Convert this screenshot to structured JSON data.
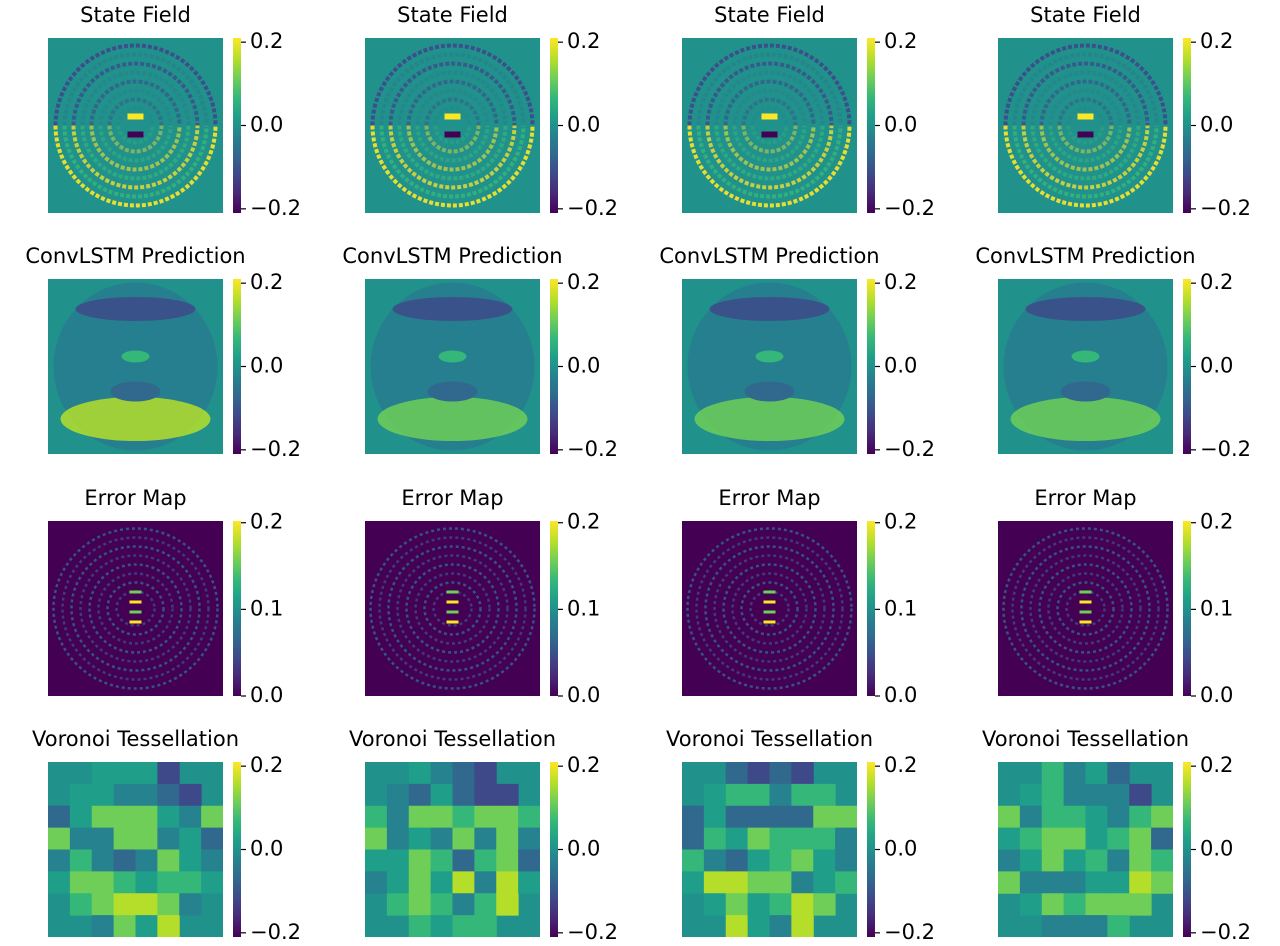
{
  "chart_data": [
    {
      "type": "heatmap",
      "title": "State Field",
      "colormap": "viridis",
      "ylim": [
        -0.21,
        0.21
      ],
      "yticks": [
        {
          "value": -0.2,
          "label": "−0.2"
        },
        {
          "value": 0,
          "label": "0.0"
        },
        0.2
      ]
    },
    {
      "type": "heatmap",
      "title": "State Field",
      "colormap": "viridis",
      "ylim": [
        -0.21,
        0.21
      ],
      "yticks": [
        {
          "value": -0.2,
          "label": "−0.2"
        },
        {
          "value": 0,
          "label": "0.0"
        },
        0.2
      ]
    },
    {
      "type": "heatmap",
      "title": "State Field",
      "colormap": "viridis",
      "ylim": [
        -0.21,
        0.21
      ],
      "yticks": [
        {
          "value": -0.2,
          "label": "−0.2"
        },
        {
          "value": 0,
          "label": "0.0"
        },
        0.2
      ]
    },
    {
      "type": "heatmap",
      "title": "State Field",
      "colormap": "viridis",
      "ylim": [
        -0.21,
        0.21
      ],
      "yticks": [
        {
          "value": -0.2,
          "label": "−0.2"
        },
        {
          "value": 0,
          "label": "0.0"
        },
        0.2
      ]
    },
    {
      "type": "heatmap",
      "title": "ConvLSTM Prediction",
      "colormap": "viridis",
      "ylim": [
        -0.21,
        0.21
      ],
      "yticks": [
        {
          "value": -0.2,
          "label": "−0.2"
        },
        {
          "value": 0,
          "label": "0.0"
        },
        0.2
      ]
    },
    {
      "type": "heatmap",
      "title": "ConvLSTM Prediction",
      "colormap": "viridis",
      "ylim": [
        -0.21,
        0.21
      ],
      "yticks": [
        {
          "value": -0.2,
          "label": "−0.2"
        },
        {
          "value": 0,
          "label": "0.0"
        },
        0.2
      ]
    },
    {
      "type": "heatmap",
      "title": "ConvLSTM Prediction",
      "colormap": "viridis",
      "ylim": [
        -0.21,
        0.21
      ],
      "yticks": [
        {
          "value": -0.2,
          "label": "−0.2"
        },
        {
          "value": 0,
          "label": "0.0"
        },
        0.2
      ]
    },
    {
      "type": "heatmap",
      "title": "ConvLSTM Prediction",
      "colormap": "viridis",
      "ylim": [
        -0.21,
        0.21
      ],
      "yticks": [
        {
          "value": -0.2,
          "label": "−0.2"
        },
        {
          "value": 0,
          "label": "0.0"
        },
        0.2
      ]
    },
    {
      "type": "heatmap",
      "title": "Error Map",
      "colormap": "viridis",
      "ylim": [
        0,
        0.202
      ],
      "yticks": [
        {
          "value": 0,
          "label": "0.0"
        },
        0.1,
        0.2
      ]
    },
    {
      "type": "heatmap",
      "title": "Error Map",
      "colormap": "viridis",
      "ylim": [
        0,
        0.202
      ],
      "yticks": [
        {
          "value": 0,
          "label": "0.0"
        },
        0.1,
        0.2
      ]
    },
    {
      "type": "heatmap",
      "title": "Error Map",
      "colormap": "viridis",
      "ylim": [
        0,
        0.202
      ],
      "yticks": [
        {
          "value": 0,
          "label": "0.0"
        },
        0.1,
        0.2
      ]
    },
    {
      "type": "heatmap",
      "title": "Error Map",
      "colormap": "viridis",
      "ylim": [
        0,
        0.202
      ],
      "yticks": [
        {
          "value": 0,
          "label": "0.0"
        },
        0.1,
        0.2
      ]
    },
    {
      "type": "heatmap",
      "title": "Voronoi Tessellation",
      "colormap": "viridis",
      "ylim": [
        -0.21,
        0.21
      ],
      "yticks": [
        {
          "value": -0.2,
          "label": "−0.2"
        },
        {
          "value": 0,
          "label": "0.0"
        },
        0.2
      ]
    },
    {
      "type": "heatmap",
      "title": "Voronoi Tessellation",
      "colormap": "viridis",
      "ylim": [
        -0.21,
        0.21
      ],
      "yticks": [
        {
          "value": -0.2,
          "label": "−0.2"
        },
        {
          "value": 0,
          "label": "0.0"
        },
        0.2
      ]
    },
    {
      "type": "heatmap",
      "title": "Voronoi Tessellation",
      "colormap": "viridis",
      "ylim": [
        -0.21,
        0.21
      ],
      "yticks": [
        {
          "value": -0.2,
          "label": "−0.2"
        },
        {
          "value": 0,
          "label": "0.0"
        },
        0.2
      ]
    },
    {
      "type": "heatmap",
      "title": "Voronoi Tessellation",
      "colormap": "viridis",
      "ylim": [
        -0.21,
        0.21
      ],
      "yticks": [
        {
          "value": -0.2,
          "label": "−0.2"
        },
        {
          "value": 0,
          "label": "0.0"
        },
        0.2
      ]
    }
  ]
}
